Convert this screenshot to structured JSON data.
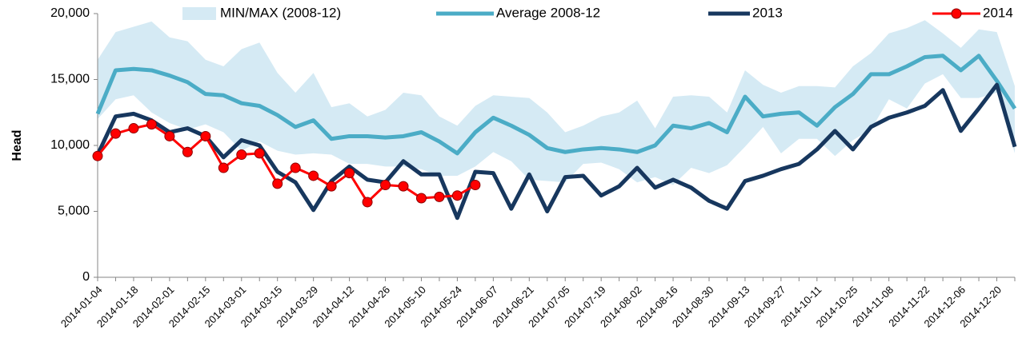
{
  "chart_data": {
    "type": "line",
    "y_label": "Head",
    "categories": [
      "2014-01-04",
      null,
      "2014-01-18",
      null,
      "2014-02-01",
      null,
      "2014-02-15",
      null,
      "2014-03-01",
      null,
      "2014-03-15",
      null,
      "2014-03-29",
      null,
      "2014-04-12",
      null,
      "2014-04-26",
      null,
      "2014-05-10",
      null,
      "2014-05-24",
      null,
      "2014-06-07",
      null,
      "2014-06-21",
      null,
      "2014-07-05",
      null,
      "2014-07-19",
      null,
      "2014-08-02",
      null,
      "2014-08-16",
      null,
      "2014-08-30",
      null,
      "2014-09-13",
      null,
      "2014-09-27",
      null,
      "2014-10-11",
      null,
      "2014-10-25",
      null,
      "2014-11-08",
      null,
      "2014-11-22",
      null,
      "2014-12-06",
      null,
      "2014-12-20",
      null
    ],
    "band": {
      "name": "MIN/MAX (2008-12)",
      "color": "#d5eaf4",
      "max": [
        16500,
        18600,
        19000,
        19400,
        18200,
        17900,
        16500,
        16000,
        17300,
        17800,
        15500,
        14000,
        15500,
        12900,
        13200,
        12200,
        12700,
        14000,
        13800,
        12200,
        11500,
        13000,
        13800,
        13700,
        13600,
        12500,
        11000,
        11500,
        12200,
        12500,
        13400,
        11300,
        13700,
        13800,
        13700,
        12500,
        15700,
        14600,
        14000,
        14500,
        14500,
        14400,
        16000,
        17000,
        18500,
        18900,
        19500,
        18500,
        17400,
        18800,
        18600,
        14500
      ],
      "min": [
        12000,
        13500,
        13800,
        12500,
        11700,
        11200,
        11600,
        11000,
        9600,
        10300,
        9600,
        9300,
        9400,
        9300,
        8600,
        8600,
        8400,
        8400,
        8200,
        7700,
        7700,
        8400,
        9500,
        8800,
        7400,
        7300,
        7200,
        8600,
        8700,
        8200,
        7200,
        7600,
        7000,
        8300,
        7900,
        8500,
        9900,
        11400,
        9400,
        10500,
        10500,
        9200,
        10400,
        11200,
        13500,
        12800,
        14700,
        15400,
        13600,
        13600,
        14000,
        9400
      ]
    },
    "series": [
      {
        "name": "Average 2008-12",
        "color": "#4bacc6",
        "width": 5,
        "marker": false,
        "values": [
          12400,
          15700,
          15800,
          15700,
          15300,
          14800,
          13900,
          13800,
          13200,
          13000,
          12300,
          11400,
          11900,
          10500,
          10700,
          10700,
          10600,
          10700,
          11000,
          10300,
          9400,
          11000,
          12100,
          11500,
          10800,
          9800,
          9500,
          9700,
          9800,
          9700,
          9500,
          10000,
          11500,
          11300,
          11700,
          11000,
          13700,
          12200,
          12400,
          12500,
          11500,
          12900,
          13900,
          15400,
          15400,
          16000,
          16700,
          16800,
          15700,
          16800,
          14900,
          12800
        ]
      },
      {
        "name": "2013",
        "color": "#17375e",
        "width": 5,
        "marker": false,
        "values": [
          9300,
          12200,
          12400,
          11900,
          11000,
          11300,
          10700,
          9100,
          10400,
          10000,
          8000,
          7200,
          5100,
          7300,
          8400,
          7400,
          7200,
          8800,
          7800,
          7800,
          4500,
          8000,
          7900,
          5200,
          7800,
          5000,
          7600,
          7700,
          6200,
          6900,
          8300,
          6800,
          7400,
          6800,
          5800,
          5200,
          7300,
          7700,
          8200,
          8600,
          9700,
          11100,
          9700,
          11400,
          12100,
          12500,
          13000,
          14200,
          11100,
          12800,
          14600,
          9900
        ]
      },
      {
        "name": "2014",
        "color": "#ff0000",
        "width": 3,
        "marker": true,
        "values": [
          9200,
          10900,
          11300,
          11600,
          10700,
          9500,
          10700,
          8300,
          9300,
          9400,
          7100,
          8300,
          7700,
          6900,
          7900,
          5700,
          7000,
          6900,
          6000,
          6100,
          6200,
          7000,
          null,
          null,
          null,
          null,
          null,
          null,
          null,
          null,
          null,
          null,
          null,
          null,
          null,
          null,
          null,
          null,
          null,
          null,
          null,
          null,
          null,
          null,
          null,
          null,
          null,
          null,
          null,
          null,
          null,
          null
        ]
      }
    ],
    "ylim": [
      0,
      20000
    ],
    "yticks": [
      0,
      {
        "value": 5000,
        "label": "5,000"
      },
      {
        "value": 10000,
        "label": "10,000"
      },
      {
        "value": 15000,
        "label": "15,000"
      },
      {
        "value": 20000,
        "label": "20,000"
      }
    ],
    "grid": false,
    "legend": "top"
  }
}
